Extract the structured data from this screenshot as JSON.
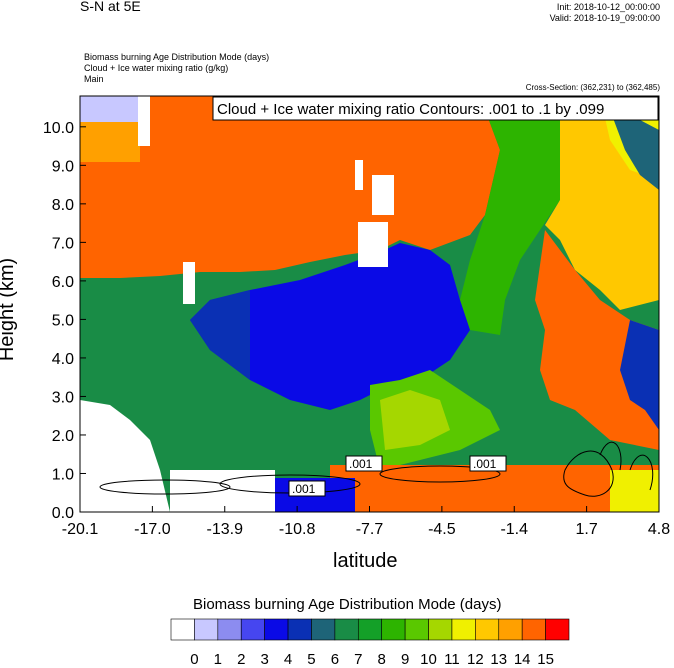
{
  "header": {
    "title": "S-N at 5E",
    "init": "Init: 2018-10-12_00:00:00",
    "valid": "Valid: 2018-10-19_09:00:00",
    "subtitle_lines": [
      "Biomass burning Age Distribution Mode   (days)",
      "Cloud + Ice water mixing ratio   (g/kg)",
      "Main"
    ],
    "cross_section": "Cross-Section: (362,231) to (362,485)",
    "contour_info": "Cloud + Ice water mixing ratio Contours: .001 to .1 by .099"
  },
  "chart_data": {
    "type": "heatmap",
    "xlabel": "latitude",
    "ylabel": "Height (km)",
    "xlim": [
      -20.1,
      4.8
    ],
    "ylim": [
      0,
      10.8
    ],
    "x_ticks": [
      "-20.1",
      "-17.0",
      "-13.9",
      "-10.8",
      "-7.7",
      "-4.5",
      "-1.4",
      "1.7",
      "4.8"
    ],
    "y_ticks": [
      "0.0",
      "1.0",
      "2.0",
      "3.0",
      "4.0",
      "5.0",
      "6.0",
      "7.0",
      "8.0",
      "9.0",
      "10.0"
    ],
    "colorbar": {
      "title": "Biomass burning Age Distribution Mode  (days)",
      "labels": [
        "0",
        "1",
        "2",
        "3",
        "4",
        "5",
        "6",
        "7",
        "8",
        "9",
        "10",
        "11",
        "12",
        "13",
        "14",
        "15"
      ],
      "colors": [
        "#ffffff",
        "#c8c8ff",
        "#8c8cf0",
        "#4646f0",
        "#0a0ae6",
        "#0a30b4",
        "#1e6478",
        "#198c46",
        "#14a028",
        "#2db400",
        "#5ac800",
        "#a5d700",
        "#f0f000",
        "#ffc800",
        "#ffa000",
        "#ff6400",
        "#ff0000"
      ]
    },
    "contour_labels": [
      ".001",
      ".001",
      ".001"
    ],
    "regions": [
      {
        "label": "upper-left",
        "value_days": 15
      },
      {
        "label": "mid-left layer",
        "value_days": 7
      },
      {
        "label": "central core",
        "value_days": 4
      },
      {
        "label": "right upper",
        "value_days": 12
      },
      {
        "label": "right lower",
        "value_days": 15
      }
    ]
  }
}
